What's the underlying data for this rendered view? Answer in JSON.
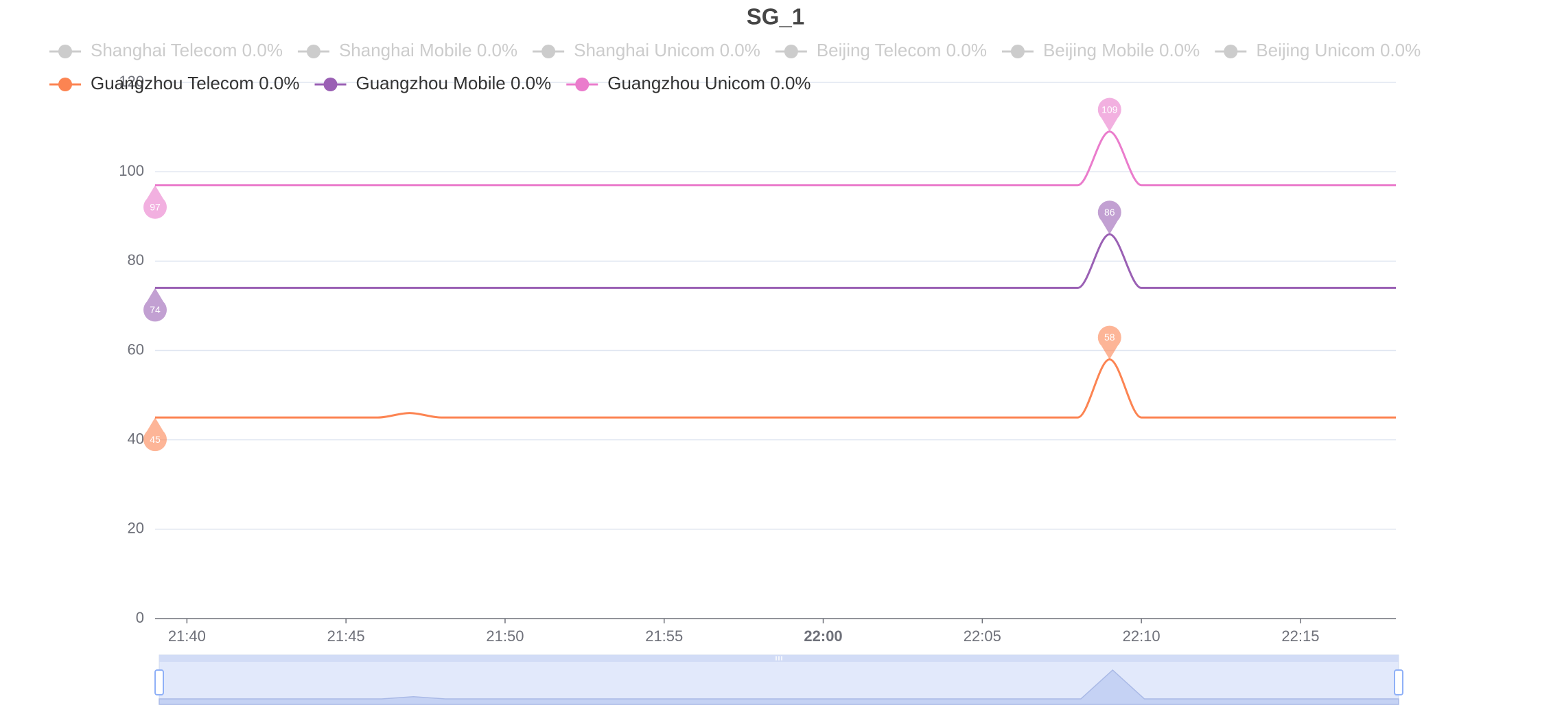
{
  "chart_data": {
    "type": "line",
    "title": "SG_1",
    "x": [
      "21:39",
      "21:40",
      "21:41",
      "21:42",
      "21:43",
      "21:44",
      "21:45",
      "21:46",
      "21:47",
      "21:48",
      "21:49",
      "21:50",
      "21:51",
      "21:52",
      "21:53",
      "21:54",
      "21:55",
      "21:56",
      "21:57",
      "21:58",
      "21:59",
      "22:00",
      "22:01",
      "22:02",
      "22:03",
      "22:04",
      "22:05",
      "22:06",
      "22:07",
      "22:08",
      "22:09",
      "22:10",
      "22:11",
      "22:12",
      "22:13",
      "22:14",
      "22:15",
      "22:16",
      "22:17",
      "22:18"
    ],
    "xlim": [
      "21:39",
      "22:18"
    ],
    "xticks": [
      "21:40",
      "21:45",
      "21:50",
      "21:55",
      "22:00",
      "22:05",
      "22:10",
      "22:15"
    ],
    "ylim": [
      0,
      120
    ],
    "yticks": [
      0,
      20,
      40,
      60,
      80,
      100,
      120
    ],
    "grid": true,
    "smooth": true,
    "mark_points": [
      "max",
      "min"
    ],
    "series": [
      {
        "name": "Shanghai Telecom 0.0%",
        "selected": false
      },
      {
        "name": "Shanghai Mobile 0.0%",
        "selected": false
      },
      {
        "name": "Shanghai Unicom 0.0%",
        "selected": false
      },
      {
        "name": "Beijing Telecom 0.0%",
        "selected": false
      },
      {
        "name": "Beijing Mobile 0.0%",
        "selected": false
      },
      {
        "name": "Beijing Unicom 0.0%",
        "selected": false
      },
      {
        "name": "Guangzhou Telecom 0.0%",
        "selected": true,
        "color": "#fc8452",
        "values": [
          45,
          45,
          45,
          45,
          45,
          45,
          45,
          45,
          46,
          45,
          45,
          45,
          45,
          45,
          45,
          45,
          45,
          45,
          45,
          45,
          45,
          45,
          45,
          45,
          45,
          45,
          45,
          45,
          45,
          45,
          58,
          45,
          45,
          45,
          45,
          45,
          45,
          45,
          45,
          45
        ]
      },
      {
        "name": "Guangzhou Mobile 0.0%",
        "selected": true,
        "color": "#9a60b4",
        "values": [
          74,
          74,
          74,
          74,
          74,
          74,
          74,
          74,
          74,
          74,
          74,
          74,
          74,
          74,
          74,
          74,
          74,
          74,
          74,
          74,
          74,
          74,
          74,
          74,
          74,
          74,
          74,
          74,
          74,
          74,
          86,
          74,
          74,
          74,
          74,
          74,
          74,
          74,
          74,
          74
        ]
      },
      {
        "name": "Guangzhou Unicom 0.0%",
        "selected": true,
        "color": "#ea7ccc",
        "values": [
          97,
          97,
          97,
          97,
          97,
          97,
          97,
          97,
          97,
          97,
          97,
          97,
          97,
          97,
          97,
          97,
          97,
          97,
          97,
          97,
          97,
          97,
          97,
          97,
          97,
          97,
          97,
          97,
          97,
          97,
          109,
          97,
          97,
          97,
          97,
          97,
          97,
          97,
          97,
          97
        ]
      }
    ]
  }
}
